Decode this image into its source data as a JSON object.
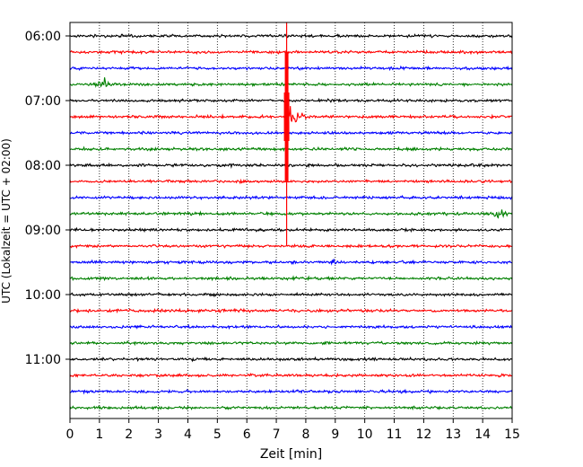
{
  "chart_data": {
    "type": "line",
    "title": "",
    "xlabel": "Zeit  [min]",
    "ylabel": "UTC (Lokalzeit = UTC + 02:00)",
    "xlim": [
      0,
      15
    ],
    "x_ticks": [
      "0",
      "1",
      "2",
      "3",
      "4",
      "5",
      "6",
      "7",
      "8",
      "9",
      "10",
      "11",
      "12",
      "13",
      "14",
      "15"
    ],
    "y_ticks": [
      "06:00",
      "07:00",
      "08:00",
      "09:00",
      "10:00",
      "11:00"
    ],
    "grid": "vertical-dotted",
    "trace_interval_minutes": 15,
    "trace_colors": [
      "#000000",
      "#ff0000",
      "#0000ff",
      "#008000"
    ],
    "traces": [
      {
        "start": "06:00",
        "color": "#000000"
      },
      {
        "start": "06:15",
        "color": "#ff0000"
      },
      {
        "start": "06:30",
        "color": "#0000ff"
      },
      {
        "start": "06:45",
        "color": "#008000"
      },
      {
        "start": "07:00",
        "color": "#000000"
      },
      {
        "start": "07:15",
        "color": "#ff0000"
      },
      {
        "start": "07:30",
        "color": "#0000ff"
      },
      {
        "start": "07:45",
        "color": "#008000"
      },
      {
        "start": "08:00",
        "color": "#000000"
      },
      {
        "start": "08:15",
        "color": "#ff0000"
      },
      {
        "start": "08:30",
        "color": "#0000ff"
      },
      {
        "start": "08:45",
        "color": "#008000"
      },
      {
        "start": "09:00",
        "color": "#000000"
      },
      {
        "start": "09:15",
        "color": "#ff0000"
      },
      {
        "start": "09:30",
        "color": "#0000ff"
      },
      {
        "start": "09:45",
        "color": "#008000"
      },
      {
        "start": "10:00",
        "color": "#000000"
      },
      {
        "start": "10:15",
        "color": "#ff0000"
      },
      {
        "start": "10:30",
        "color": "#0000ff"
      },
      {
        "start": "10:45",
        "color": "#008000"
      },
      {
        "start": "11:00",
        "color": "#000000"
      },
      {
        "start": "11:15",
        "color": "#ff0000"
      },
      {
        "start": "11:30",
        "color": "#0000ff"
      },
      {
        "start": "11:45",
        "color": "#008000"
      }
    ],
    "events": [
      {
        "trace": "06:45",
        "minute": 1.1,
        "type": "local burst"
      },
      {
        "trace": "07:15",
        "minute": 7.35,
        "type": "strong event with coda",
        "coda_until_minute": 8.2
      },
      {
        "trace": "08:45",
        "minute": 14.6,
        "type": "local burst"
      },
      {
        "trace": "09:30",
        "minute": 8.9,
        "type": "small burst"
      }
    ]
  }
}
